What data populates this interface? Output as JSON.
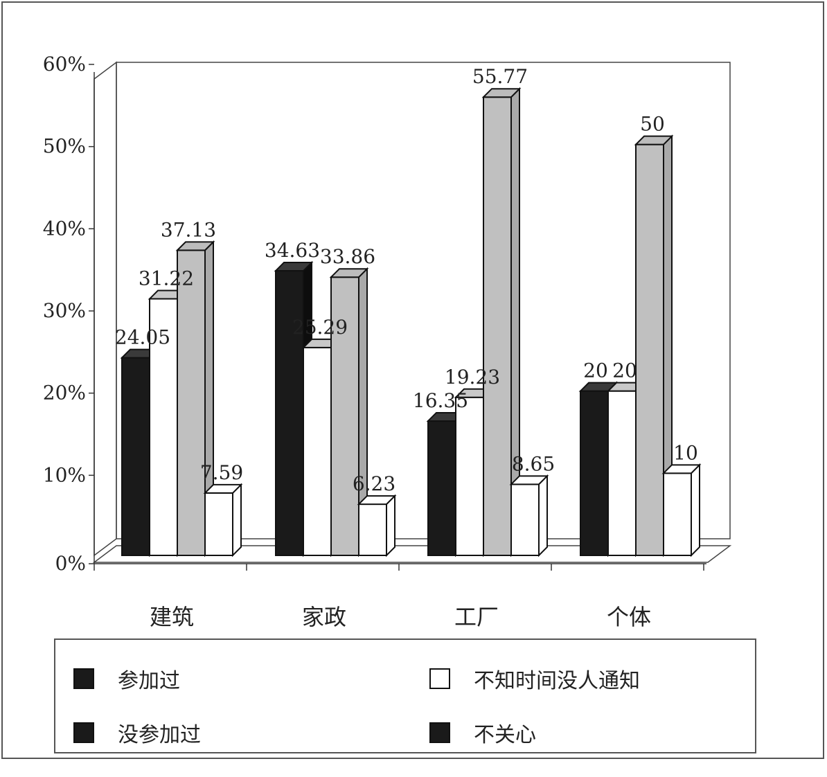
{
  "chart_data": {
    "type": "bar",
    "categories": [
      "建筑",
      "家政",
      "工厂",
      "个体"
    ],
    "series": [
      {
        "name": "参加过",
        "values": [
          24.05,
          34.63,
          16.35,
          20
        ],
        "color": "#1a1a1a"
      },
      {
        "name": "不知时间没人通知",
        "values": [
          31.22,
          25.29,
          19.23,
          20
        ],
        "color": "#ffffff"
      },
      {
        "name": "没参加过",
        "values": [
          37.13,
          33.86,
          55.77,
          50
        ],
        "color": "#c0c0c0"
      },
      {
        "name": "不关心",
        "values": [
          7.59,
          6.23,
          8.65,
          10
        ],
        "color": "#ffffff"
      }
    ],
    "data_labels": [
      [
        "24.05",
        "34.63",
        "16.35",
        "20"
      ],
      [
        "31.22",
        "25.29",
        "19.23",
        "20"
      ],
      [
        "37.13",
        "33.86",
        "55.77",
        "50"
      ],
      [
        "7.59",
        "6.23",
        "8.65",
        "10"
      ]
    ],
    "y_ticks": [
      "0%",
      "10%",
      "20%",
      "30%",
      "40%",
      "50%",
      "60%"
    ],
    "ylim": [
      0,
      60
    ],
    "grid": false,
    "legend_position": "bottom",
    "style": "3d-clustered-column"
  },
  "legend": {
    "items": [
      {
        "label": "参加过",
        "swatch_color": "#1a1a1a"
      },
      {
        "label": "不知时间没人通知",
        "swatch_color": "#ffffff"
      },
      {
        "label": "没参加过",
        "swatch_color": "#1a1a1a"
      },
      {
        "label": "不关心",
        "swatch_color": "#1a1a1a"
      }
    ]
  }
}
